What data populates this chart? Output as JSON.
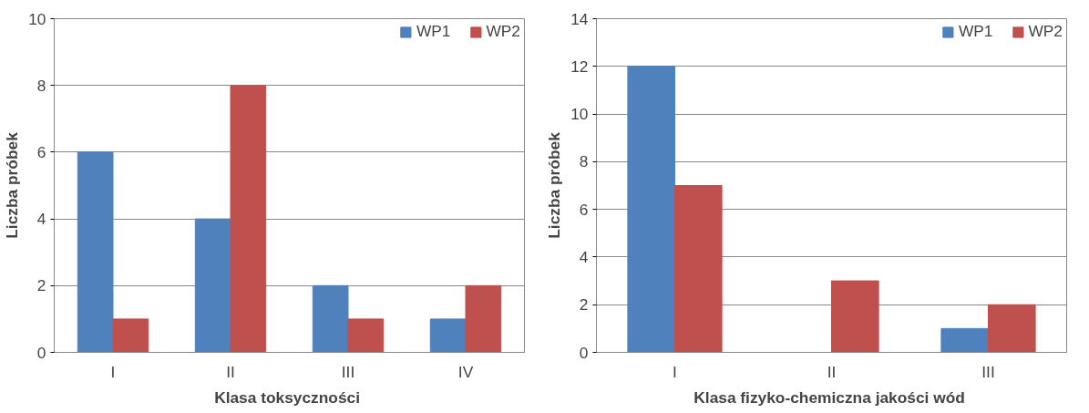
{
  "chart_data": [
    {
      "type": "bar",
      "xlabel": "Klasa  toksyczności",
      "ylabel": "Liczba próbek",
      "categories": [
        "I",
        "II",
        "III",
        "IV"
      ],
      "series": [
        {
          "name": "WP1",
          "color": "#4f81bd",
          "values": [
            6,
            4,
            2,
            1
          ]
        },
        {
          "name": "WP2",
          "color": "#c0504d",
          "values": [
            1,
            8,
            1,
            2
          ]
        }
      ],
      "ylim": [
        0,
        10
      ],
      "yticks": [
        0,
        2,
        4,
        6,
        8,
        10
      ],
      "grid": "y",
      "legend": "top right"
    },
    {
      "type": "bar",
      "xlabel": "Klasa  fizyko-chemiczna jakości wód",
      "ylabel": "Liczba próbek",
      "categories": [
        "I",
        "II",
        "III"
      ],
      "series": [
        {
          "name": "WP1",
          "color": "#4f81bd",
          "values": [
            12,
            0,
            1
          ]
        },
        {
          "name": "WP2",
          "color": "#c0504d",
          "values": [
            7,
            3,
            2
          ]
        }
      ],
      "ylim": [
        0,
        14
      ],
      "yticks": [
        0,
        2,
        4,
        6,
        8,
        10,
        12,
        14
      ],
      "grid": "y",
      "legend": "top right"
    }
  ]
}
